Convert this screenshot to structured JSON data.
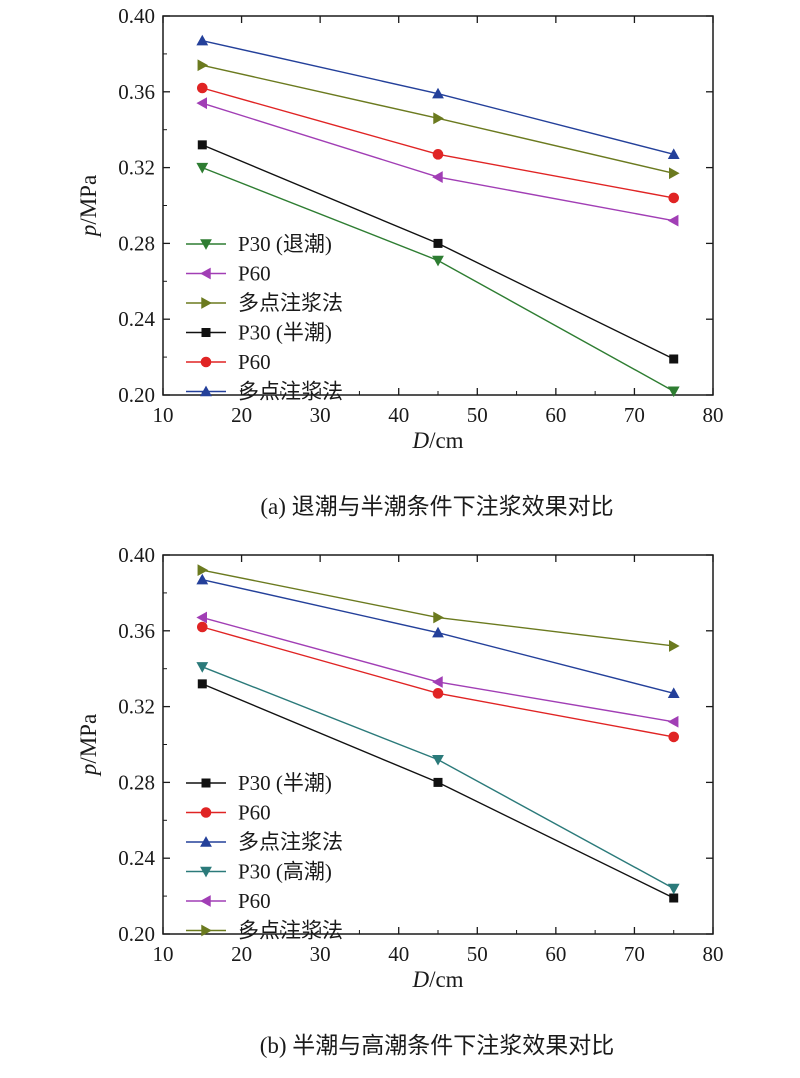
{
  "chart_data": [
    {
      "type": "line",
      "caption": "(a) 退潮与半潮条件下注浆效果对比",
      "xlabel": "D/cm",
      "ylabel": "p/MPa",
      "x": [
        15,
        45,
        75
      ],
      "xlim": [
        10,
        80
      ],
      "ylim": [
        0.2,
        0.4
      ],
      "xticks": [
        10,
        20,
        30,
        40,
        50,
        60,
        70,
        80
      ],
      "yticks": [
        0.2,
        0.24,
        0.28,
        0.32,
        0.36,
        0.4
      ],
      "legend_position": "lower-left",
      "grid": false,
      "series": [
        {
          "name": "P30 (退潮)",
          "marker": "triangle-down",
          "color": "#2e7d32",
          "values": [
            0.32,
            0.271,
            0.202
          ]
        },
        {
          "name": "P60",
          "marker": "triangle-left",
          "color": "#a13eb5",
          "values": [
            0.354,
            0.315,
            0.292
          ]
        },
        {
          "name": "多点注浆法",
          "marker": "triangle-right",
          "color": "#6b7a1f",
          "values": [
            0.374,
            0.346,
            0.317
          ]
        },
        {
          "name": "P30 (半潮)",
          "marker": "square",
          "color": "#111111",
          "values": [
            0.332,
            0.28,
            0.219
          ]
        },
        {
          "name": "P60",
          "marker": "circle",
          "color": "#e02424",
          "values": [
            0.362,
            0.327,
            0.304
          ]
        },
        {
          "name": "多点注浆法",
          "marker": "triangle-up",
          "color": "#24409a",
          "values": [
            0.387,
            0.359,
            0.327
          ]
        }
      ]
    },
    {
      "type": "line",
      "caption": "(b) 半潮与高潮条件下注浆效果对比",
      "xlabel": "D/cm",
      "ylabel": "p/MPa",
      "x": [
        15,
        45,
        75
      ],
      "xlim": [
        10,
        80
      ],
      "ylim": [
        0.2,
        0.4
      ],
      "xticks": [
        10,
        20,
        30,
        40,
        50,
        60,
        70,
        80
      ],
      "yticks": [
        0.2,
        0.24,
        0.28,
        0.32,
        0.36,
        0.4
      ],
      "legend_position": "lower-left",
      "grid": false,
      "series": [
        {
          "name": "P30 (半潮)",
          "marker": "square",
          "color": "#111111",
          "values": [
            0.332,
            0.28,
            0.219
          ]
        },
        {
          "name": "P60",
          "marker": "circle",
          "color": "#e02424",
          "values": [
            0.362,
            0.327,
            0.304
          ]
        },
        {
          "name": "多点注浆法",
          "marker": "triangle-up",
          "color": "#24409a",
          "values": [
            0.387,
            0.359,
            0.327
          ]
        },
        {
          "name": "P30 (高潮)",
          "marker": "triangle-down",
          "color": "#2b7a7a",
          "values": [
            0.341,
            0.292,
            0.224
          ]
        },
        {
          "name": "P60",
          "marker": "triangle-left",
          "color": "#a13eb5",
          "values": [
            0.367,
            0.333,
            0.312
          ]
        },
        {
          "name": "多点注浆法",
          "marker": "triangle-right",
          "color": "#6b7a1f",
          "values": [
            0.392,
            0.367,
            0.352
          ]
        }
      ]
    }
  ]
}
